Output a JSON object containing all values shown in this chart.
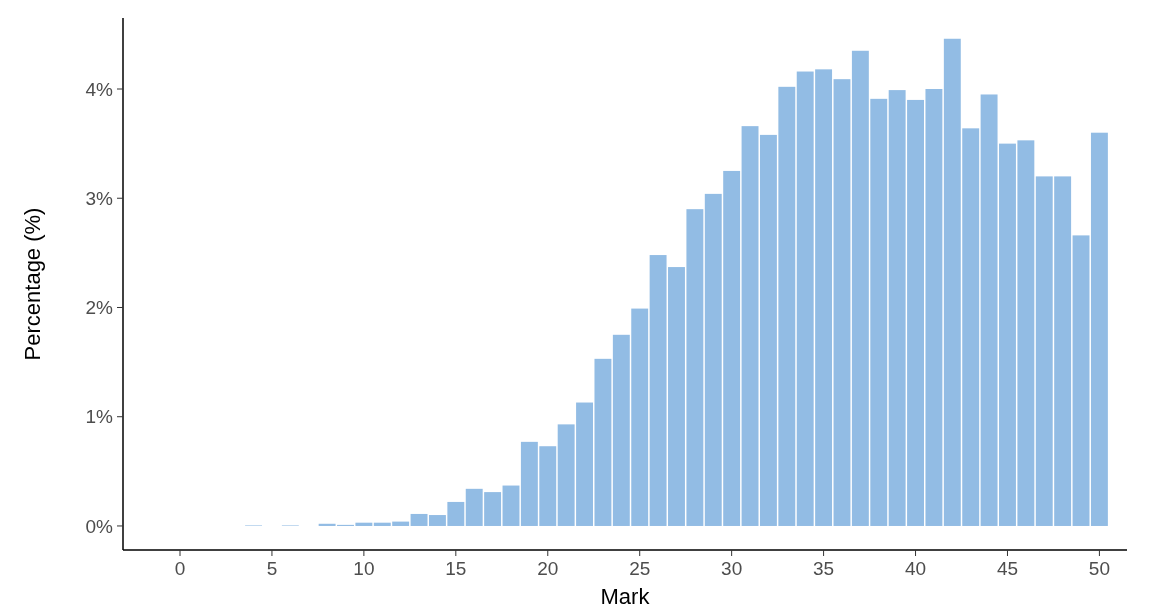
{
  "chart_data": {
    "type": "bar",
    "xlabel": "Mark",
    "ylabel": "Percentage (%)",
    "color": "#92bce4",
    "x": [
      0,
      1,
      2,
      3,
      4,
      5,
      6,
      7,
      8,
      9,
      10,
      11,
      12,
      13,
      14,
      15,
      16,
      17,
      18,
      19,
      20,
      21,
      22,
      23,
      24,
      25,
      26,
      27,
      28,
      29,
      30,
      31,
      32,
      33,
      34,
      35,
      36,
      37,
      38,
      39,
      40,
      41,
      42,
      43,
      44,
      45,
      46,
      47,
      48,
      49,
      50
    ],
    "values": [
      0,
      0,
      0,
      0,
      0.005,
      0,
      0.005,
      0,
      0.02,
      0.01,
      0.03,
      0.03,
      0.04,
      0.11,
      0.1,
      0.22,
      0.34,
      0.31,
      0.37,
      0.77,
      0.73,
      0.93,
      1.13,
      1.53,
      1.75,
      1.99,
      2.48,
      2.37,
      2.9,
      3.04,
      3.25,
      3.66,
      3.58,
      4.02,
      4.16,
      4.18,
      4.09,
      4.35,
      3.91,
      3.99,
      3.9,
      4.0,
      4.46,
      3.64,
      3.95,
      3.5,
      3.53,
      3.2,
      3.2,
      2.66,
      3.6
    ],
    "xlim": [
      -3.1,
      51.5
    ],
    "xticks": [
      0,
      5,
      10,
      15,
      20,
      25,
      30,
      35,
      40,
      45,
      50
    ],
    "ylim": [
      -0.22,
      4.65
    ],
    "yticks": [
      {
        "value": 0,
        "label": "0%"
      },
      {
        "value": 1,
        "label": "1%"
      },
      {
        "value": 2,
        "label": "2%"
      },
      {
        "value": 3,
        "label": "3%"
      },
      {
        "value": 4,
        "label": "4%"
      }
    ],
    "grid": false
  }
}
